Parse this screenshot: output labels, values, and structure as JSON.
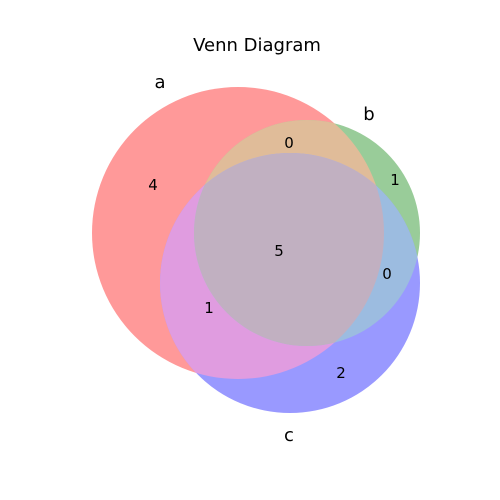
{
  "title": "Venn Diagram",
  "sets": [
    {
      "name": "a",
      "color": "#ff9999"
    },
    {
      "name": "b",
      "color": "#99cc99"
    },
    {
      "name": "c",
      "color": "#9999ff"
    }
  ],
  "regions": {
    "a_only": "4",
    "b_only": "1",
    "c_only": "2",
    "ab_only": "0",
    "ac_only": "1",
    "bc_only": "0",
    "abc": "5"
  },
  "colors": {
    "ab": "#e0bc99",
    "ac": "#e09ce0",
    "bc": "#9cbce0",
    "abc": "#c1b0c1"
  }
}
